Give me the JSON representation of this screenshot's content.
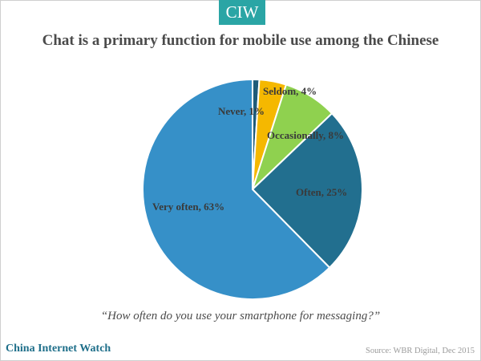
{
  "badge": "CIW",
  "chart_data": {
    "type": "pie",
    "title": "Chat is a primary function for mobile use among the Chinese",
    "categories": [
      "Never",
      "Seldom",
      "Occasionally",
      "Often",
      "Very often"
    ],
    "values": [
      1,
      4,
      8,
      25,
      63
    ],
    "labels": [
      "Never, 1%",
      "Seldom, 4%",
      "Occasionally, 8%",
      "Often, 25%",
      "Very often, 63%"
    ],
    "colors": [
      "#1f5b79",
      "#f5b800",
      "#8fd14f",
      "#226f8f",
      "#3690c8"
    ]
  },
  "question": "“How often do you use your smartphone for messaging?”",
  "brand": "China Internet Watch",
  "source": "Source: WBR Digital, Dec 2015"
}
